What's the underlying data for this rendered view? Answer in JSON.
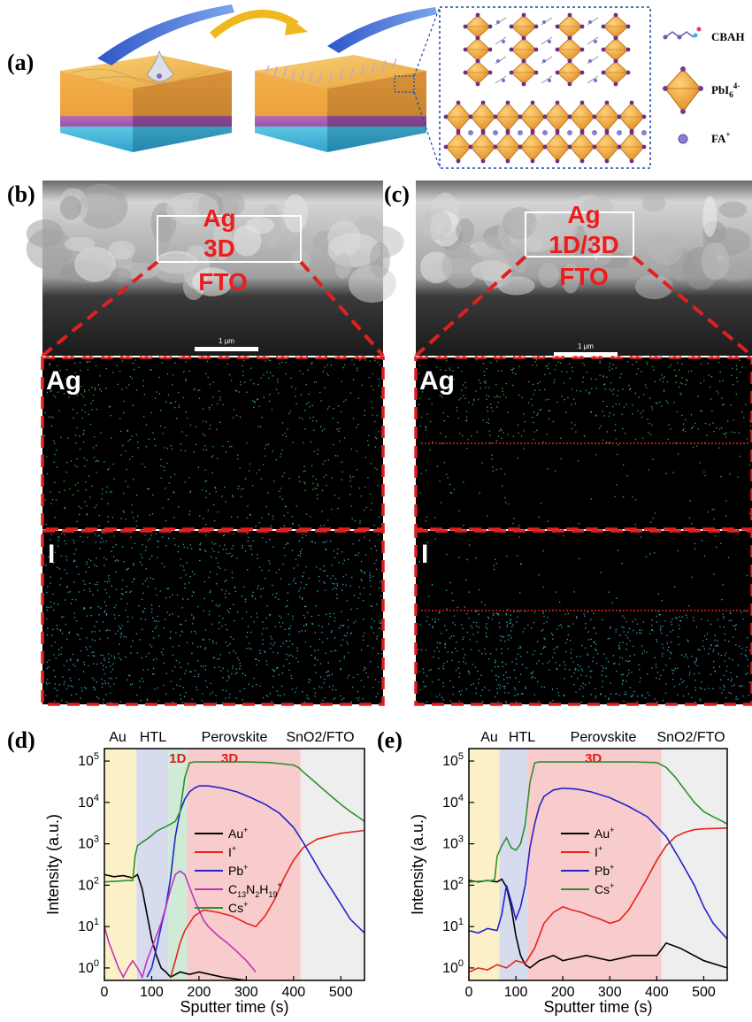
{
  "panel_a": {
    "label": "(a)",
    "legend": [
      {
        "name": "CBAH"
      },
      {
        "name": "PbI6",
        "sub": "6",
        "sup": "4-"
      },
      {
        "name": "FA",
        "sup": "+"
      }
    ]
  },
  "panel_b": {
    "label": "(b)",
    "sem_labels": [
      "Ag",
      "3D",
      "FTO"
    ],
    "scale_bar": "1 µm",
    "map_ag": "Ag",
    "map_i": "I"
  },
  "panel_c": {
    "label": "(c)",
    "sem_labels": [
      "Ag",
      "1D/3D",
      "FTO"
    ],
    "scale_bar": "1 µm",
    "map_ag": "Ag",
    "map_i": "I"
  },
  "colors": {
    "au": "#000000",
    "i": "#e8231b",
    "pb": "#2424c8",
    "c13": "#c033c0",
    "cs": "#2f8f2f",
    "region_au": "#fbf0c8",
    "region_htl": "#d6dced",
    "region_1d": "#cfead6",
    "region_3d": "#f8cccc",
    "region_sno2": "#eeeeee",
    "dash_red": "#e02020"
  },
  "chart_data": [
    {
      "panel": "(d)",
      "type": "line",
      "xlabel": "Sputter time (s)",
      "ylabel": "Intensity (a.u.)",
      "log_y": true,
      "xlim": [
        0,
        550
      ],
      "ylim": [
        0.5,
        200000
      ],
      "x_ticks": [
        0,
        100,
        200,
        300,
        400,
        500
      ],
      "y_ticks": [
        {
          "v": 1,
          "base": "10",
          "exp": "0"
        },
        {
          "v": 10,
          "base": "10",
          "exp": "1"
        },
        {
          "v": 100,
          "base": "10",
          "exp": "2"
        },
        {
          "v": 1000,
          "base": "10",
          "exp": "3"
        },
        {
          "v": 10000,
          "base": "10",
          "exp": "4"
        },
        {
          "v": 100000,
          "base": "10",
          "exp": "5"
        }
      ],
      "region_labels": [
        "Au",
        "HTL",
        "Perovskite",
        "SnO2/FTO"
      ],
      "regions": [
        {
          "x0": 0,
          "x1": 68,
          "color_key": "region_au"
        },
        {
          "x0": 68,
          "x1": 135,
          "color_key": "region_htl"
        },
        {
          "x0": 135,
          "x1": 175,
          "color_key": "region_1d"
        },
        {
          "x0": 175,
          "x1": 415,
          "color_key": "region_3d"
        },
        {
          "x0": 415,
          "x1": 550,
          "color_key": "region_sno2"
        }
      ],
      "phase_labels": [
        {
          "text": "1D",
          "x": 155
        },
        {
          "text": "3D",
          "x": 265
        }
      ],
      "legend": [
        {
          "base": "Au",
          "sup": "+",
          "color_key": "au"
        },
        {
          "base": "I",
          "sup": "+",
          "color_key": "i"
        },
        {
          "base": "Pb",
          "sup": "+",
          "color_key": "pb"
        },
        {
          "base": "C",
          "sub1": "13",
          "mid1": "N",
          "sub2": "2",
          "mid2": "H",
          "sub3": "19",
          "sup": "+",
          "color_key": "c13"
        },
        {
          "base": "Cs",
          "sup": "+",
          "color_key": "cs"
        }
      ],
      "series": [
        {
          "key": "au",
          "x": [
            0,
            20,
            40,
            60,
            70,
            80,
            90,
            100,
            110,
            120,
            130,
            140,
            160,
            180,
            200,
            250,
            300
          ],
          "y": [
            180,
            160,
            170,
            150,
            180,
            80,
            20,
            5,
            2,
            1,
            0.8,
            0.6,
            0.8,
            0.7,
            0.8,
            0.6,
            0.5
          ]
        },
        {
          "key": "i",
          "x": [
            140,
            150,
            160,
            170,
            190,
            210,
            240,
            270,
            300,
            320,
            340,
            360,
            380,
            400,
            420,
            450,
            500,
            550
          ],
          "y": [
            0.6,
            1.5,
            4,
            8,
            18,
            25,
            22,
            18,
            12,
            10,
            18,
            45,
            150,
            400,
            800,
            1300,
            1800,
            2100
          ]
        },
        {
          "key": "pb",
          "x": [
            90,
            100,
            110,
            120,
            130,
            140,
            150,
            160,
            170,
            180,
            190,
            200,
            220,
            250,
            280,
            310,
            340,
            370,
            400,
            420,
            440,
            460,
            480,
            500,
            520,
            550
          ],
          "y": [
            0.6,
            1,
            3,
            10,
            30,
            150,
            1500,
            6000,
            12000,
            18000,
            22000,
            25000,
            25000,
            22000,
            18000,
            13000,
            9000,
            5500,
            2500,
            1100,
            450,
            180,
            80,
            35,
            15,
            7
          ]
        },
        {
          "key": "c13",
          "x": [
            0,
            10,
            20,
            30,
            40,
            50,
            60,
            70,
            80,
            90,
            100,
            110,
            120,
            130,
            140,
            150,
            160,
            170,
            180,
            190,
            200,
            210,
            220,
            240,
            260,
            280,
            300,
            320
          ],
          "y": [
            10,
            4,
            2,
            1,
            0.6,
            1,
            1.5,
            1,
            0.6,
            1.5,
            3,
            6,
            12,
            30,
            80,
            180,
            220,
            180,
            90,
            45,
            25,
            14,
            10,
            6,
            4,
            2.5,
            1.5,
            0.8
          ]
        },
        {
          "key": "cs",
          "x": [
            0,
            50,
            60,
            65,
            70,
            75,
            80,
            90,
            100,
            110,
            120,
            130,
            140,
            150,
            160,
            170,
            180,
            190,
            200,
            250,
            300,
            350,
            400,
            410,
            420,
            440,
            460,
            480,
            500,
            520,
            540,
            550
          ],
          "y": [
            120,
            130,
            130,
            500,
            900,
            1000,
            1100,
            1300,
            1600,
            2000,
            2300,
            2600,
            3000,
            3500,
            6000,
            40000,
            90000,
            95000,
            95000,
            95000,
            95000,
            92000,
            80000,
            70000,
            55000,
            35000,
            22000,
            14000,
            9000,
            6000,
            4200,
            3500
          ]
        }
      ]
    },
    {
      "panel": "(e)",
      "type": "line",
      "xlabel": "Sputter time (s)",
      "ylabel": "Intensity (a.u.)",
      "log_y": true,
      "xlim": [
        0,
        550
      ],
      "ylim": [
        0.5,
        200000
      ],
      "x_ticks": [
        0,
        100,
        200,
        300,
        400,
        500
      ],
      "y_ticks": [
        {
          "v": 1,
          "base": "10",
          "exp": "0"
        },
        {
          "v": 10,
          "base": "10",
          "exp": "1"
        },
        {
          "v": 100,
          "base": "10",
          "exp": "2"
        },
        {
          "v": 1000,
          "base": "10",
          "exp": "3"
        },
        {
          "v": 10000,
          "base": "10",
          "exp": "4"
        },
        {
          "v": 100000,
          "base": "10",
          "exp": "5"
        }
      ],
      "region_labels": [
        "Au",
        "HTL",
        "Perovskite",
        "SnO2/FTO"
      ],
      "regions": [
        {
          "x0": 0,
          "x1": 65,
          "color_key": "region_au"
        },
        {
          "x0": 65,
          "x1": 125,
          "color_key": "region_htl"
        },
        {
          "x0": 125,
          "x1": 410,
          "color_key": "region_3d"
        },
        {
          "x0": 410,
          "x1": 550,
          "color_key": "region_sno2"
        }
      ],
      "phase_labels": [
        {
          "text": "3D",
          "x": 265
        }
      ],
      "legend": [
        {
          "base": "Au",
          "sup": "+",
          "color_key": "au"
        },
        {
          "base": "I",
          "sup": "+",
          "color_key": "i"
        },
        {
          "base": "Pb",
          "sup": "+",
          "color_key": "pb"
        },
        {
          "base": "Cs",
          "sup": "+",
          "color_key": "cs"
        }
      ],
      "series": [
        {
          "key": "au",
          "x": [
            0,
            20,
            40,
            60,
            70,
            80,
            90,
            100,
            110,
            120,
            130,
            150,
            180,
            200,
            250,
            300,
            350,
            400,
            420,
            450,
            500,
            550
          ],
          "y": [
            130,
            120,
            130,
            120,
            140,
            90,
            30,
            6,
            2,
            1.2,
            1,
            1.5,
            2,
            1.5,
            2,
            1.5,
            2,
            2,
            4,
            3,
            1.5,
            1
          ]
        },
        {
          "key": "i",
          "x": [
            0,
            20,
            40,
            60,
            80,
            100,
            120,
            140,
            160,
            180,
            200,
            220,
            240,
            260,
            280,
            300,
            320,
            340,
            360,
            380,
            400,
            420,
            440,
            460,
            480,
            500,
            550
          ],
          "y": [
            0.8,
            1,
            0.9,
            1.2,
            1,
            1.5,
            1.3,
            3,
            12,
            22,
            30,
            25,
            22,
            18,
            15,
            12,
            14,
            25,
            60,
            150,
            400,
            900,
            1500,
            1900,
            2200,
            2300,
            2400
          ]
        },
        {
          "key": "pb",
          "x": [
            0,
            20,
            40,
            60,
            70,
            80,
            90,
            100,
            110,
            120,
            130,
            140,
            150,
            160,
            180,
            200,
            230,
            260,
            300,
            340,
            380,
            420,
            450,
            480,
            500,
            520,
            550
          ],
          "y": [
            8,
            7,
            9,
            8,
            20,
            100,
            40,
            15,
            30,
            100,
            800,
            3000,
            8000,
            14000,
            20000,
            22000,
            21000,
            18000,
            13000,
            8000,
            4500,
            1500,
            400,
            100,
            30,
            12,
            5
          ]
        },
        {
          "key": "cs",
          "x": [
            0,
            50,
            55,
            60,
            70,
            80,
            90,
            100,
            110,
            120,
            130,
            140,
            150,
            200,
            250,
            300,
            350,
            400,
            420,
            440,
            460,
            480,
            500,
            520,
            540,
            550
          ],
          "y": [
            120,
            130,
            140,
            500,
            900,
            1400,
            800,
            700,
            1000,
            3000,
            30000,
            90000,
            95000,
            95000,
            95000,
            95000,
            95000,
            92000,
            70000,
            40000,
            20000,
            10000,
            6000,
            4500,
            3500,
            3000
          ]
        }
      ]
    }
  ]
}
